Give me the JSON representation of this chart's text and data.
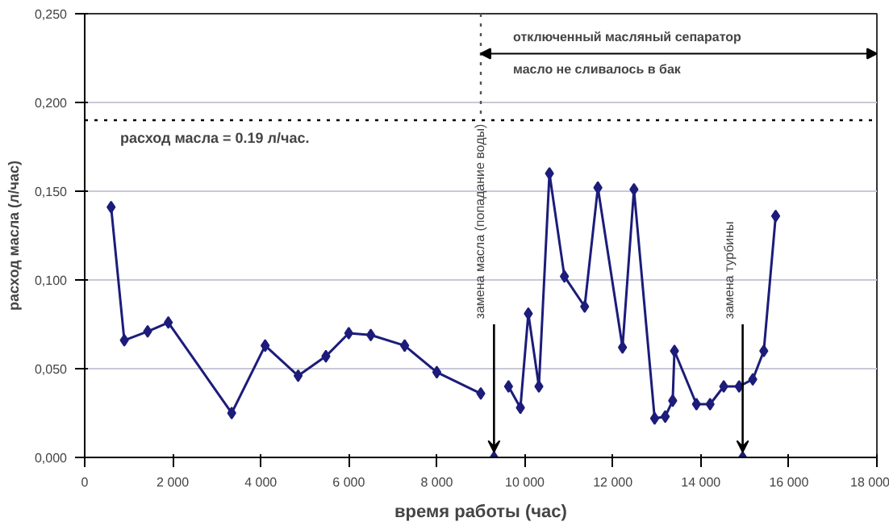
{
  "chart_data": {
    "type": "line",
    "xlabel": "время работы (час)",
    "ylabel": "расход масла (л/час)",
    "xlim": [
      0,
      18000
    ],
    "ylim": [
      0,
      0.25
    ],
    "xticks": [
      {
        "value": 0,
        "label": "0"
      },
      {
        "value": 2000,
        "label": "2 000"
      },
      {
        "value": 4000,
        "label": "4 000"
      },
      {
        "value": 6000,
        "label": "6 000"
      },
      {
        "value": 8000,
        "label": "8 000"
      },
      {
        "value": 10000,
        "label": "10 000"
      },
      {
        "value": 12000,
        "label": "12 000"
      },
      {
        "value": 14000,
        "label": "14 000"
      },
      {
        "value": 16000,
        "label": "16 000"
      },
      {
        "value": 18000,
        "label": "18 000"
      }
    ],
    "yticks": [
      {
        "value": 0,
        "label": "0,000"
      },
      {
        "value": 0.05,
        "label": "0,050"
      },
      {
        "value": 0.1,
        "label": "0,100"
      },
      {
        "value": 0.15,
        "label": "0,150"
      },
      {
        "value": 0.2,
        "label": "0,200"
      },
      {
        "value": 0.25,
        "label": "0,250"
      }
    ],
    "grid": "y",
    "marker": "diamond",
    "line_style": "solid",
    "series": [
      {
        "color": "#1c1c7a",
        "x": [
          600,
          900,
          1430,
          1900,
          3340,
          4100,
          4850,
          5480,
          6000,
          6500,
          7270,
          8000,
          9000,
          9100,
          9630,
          9900,
          10080,
          10320,
          10560,
          10900,
          11360,
          11660,
          12220,
          12480,
          12950,
          13190,
          13360,
          13400,
          13900,
          14210,
          14520,
          14870,
          15180,
          15430,
          15700
        ],
        "values": [
          0.141,
          0.066,
          0.071,
          0.076,
          0.025,
          0.063,
          0.046,
          0.057,
          0.07,
          0.069,
          0.063,
          0.048,
          0.036,
          null,
          0.04,
          0.028,
          0.081,
          0.04,
          0.16,
          0.102,
          0.085,
          0.152,
          0.062,
          0.151,
          0.022,
          0.023,
          0.032,
          0.06,
          0.03,
          0.03,
          0.04,
          0.04,
          0.044,
          0.06,
          0.136
        ]
      },
      {
        "type": "scatter",
        "color": "#1c1c7a",
        "x": [
          9300,
          14950
        ],
        "values": [
          0,
          0
        ]
      }
    ],
    "ref_lines": [
      {
        "axis": "y",
        "value": 0.19,
        "label": "расход масла = 0.19 л/час.",
        "line_style": "dotted",
        "color": "#000000"
      },
      {
        "axis": "x",
        "value": 9000,
        "line_style": "dotted",
        "color": "#555555"
      }
    ],
    "annotations": [
      "отключенный масляный сепаратор",
      "масло не сливалось в бак",
      {
        "text": "замена масла (попадание воды)",
        "x": 9300,
        "y": 0
      },
      {
        "text": "замена турбины",
        "x": 14950,
        "y": 0
      }
    ]
  }
}
